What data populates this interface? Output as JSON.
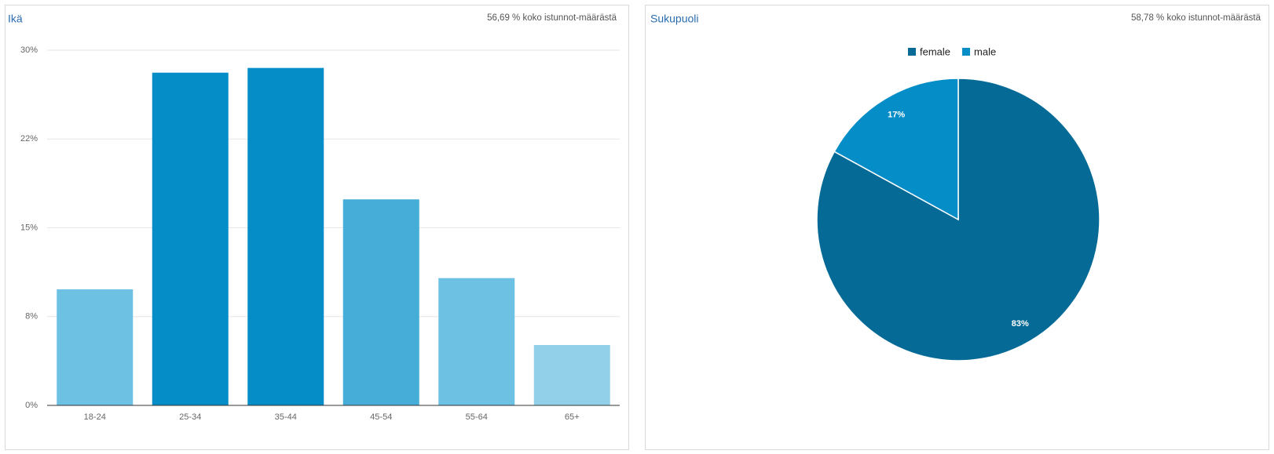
{
  "chart_data": [
    {
      "type": "bar",
      "title": "Ikä",
      "subtitle": "56,69 % koko istunnot-määrästä",
      "categories": [
        "18-24",
        "25-34",
        "35-44",
        "45-54",
        "55-64",
        "65+"
      ],
      "values": [
        9.8,
        28.1,
        28.5,
        17.4,
        10.75,
        5.1
      ],
      "colors": [
        "#6dc1e3",
        "#058dc7",
        "#058dc7",
        "#46acd8",
        "#6dc1e3",
        "#92d0ea"
      ],
      "ylim": [
        0,
        30
      ],
      "yticks": [
        {
          "value": 0,
          "label": "0%"
        },
        {
          "value": 7.5,
          "label": "8%"
        },
        {
          "value": 15,
          "label": "15%"
        },
        {
          "value": 22.5,
          "label": "22%"
        },
        {
          "value": 30,
          "label": "30%"
        }
      ],
      "grid": true
    },
    {
      "type": "pie",
      "title": "Sukupuoli",
      "subtitle": "58,78 % koko istunnot-määrästä",
      "categories": [
        "female",
        "male"
      ],
      "values": [
        83,
        17
      ],
      "value_labels": [
        "83%",
        "17%"
      ],
      "colors": [
        "#056b96",
        "#058dc7"
      ],
      "legend": "top"
    }
  ]
}
